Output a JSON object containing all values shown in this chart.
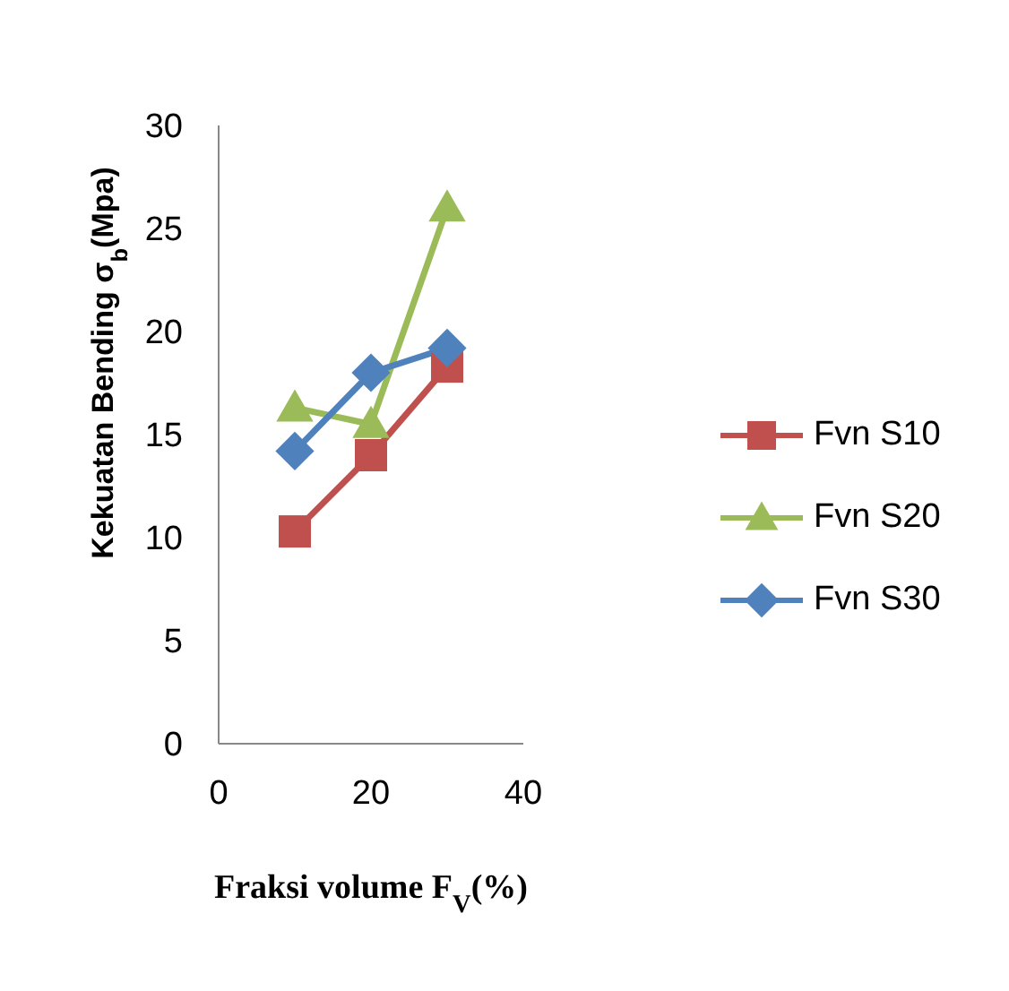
{
  "chart_data": {
    "type": "line",
    "xlabel": "Fraksi volume F$_{V}$(%)",
    "ylabel": "Kekuatan Bending σ$_{b}$(Mpa)",
    "x": [
      10,
      20,
      30
    ],
    "series": [
      {
        "name": "Fvn S10",
        "color": "#c0504d",
        "marker": "square",
        "values": [
          10.3,
          14.0,
          18.3
        ]
      },
      {
        "name": "Fvn S20",
        "color": "#9bbb59",
        "marker": "triangle",
        "values": [
          16.3,
          15.5,
          26.0
        ]
      },
      {
        "name": "Fvn S30",
        "color": "#4f81bd",
        "marker": "diamond",
        "values": [
          14.2,
          18.0,
          19.2
        ]
      }
    ],
    "xlim": [
      0,
      40
    ],
    "xticks": [
      0,
      20,
      40
    ],
    "ylim": [
      0,
      30
    ],
    "yticks": [
      0,
      5,
      10,
      15,
      20,
      25,
      30
    ],
    "grid": false,
    "legend": "right",
    "line_style": "solid"
  }
}
